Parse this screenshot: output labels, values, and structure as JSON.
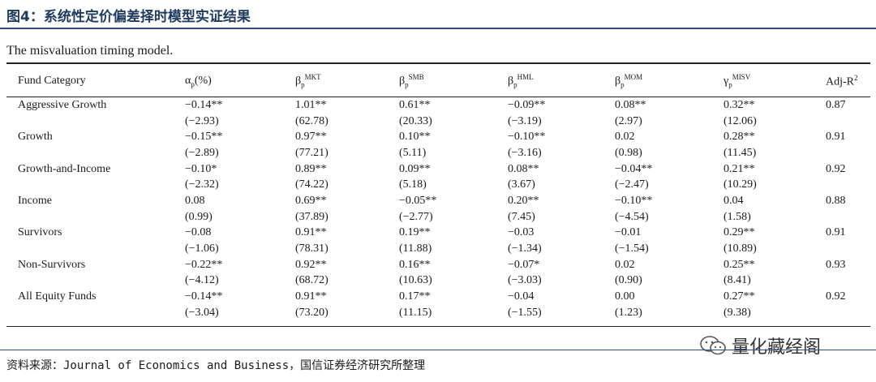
{
  "figure_title": "图4：系统性定价偏差择时模型实证结果",
  "caption": "The misvaluation timing model.",
  "headers": {
    "category": "Fund Category",
    "alpha": {
      "sym": "α",
      "sub": "p",
      "suffix": "(%)"
    },
    "b_mkt": {
      "sym": "β",
      "sub": "p",
      "sup": "MKT"
    },
    "b_smb": {
      "sym": "β",
      "sub": "p",
      "sup": "SMB"
    },
    "b_hml": {
      "sym": "β",
      "sub": "p",
      "sup": "HML"
    },
    "b_mom": {
      "sym": "β",
      "sub": "p",
      "sup": "MOM"
    },
    "g_misv": {
      "sym": "γ",
      "sub": "p",
      "sup": "MISV"
    },
    "adj": {
      "text": "Adj-R",
      "sup": "2"
    }
  },
  "rows": [
    {
      "category": "Aggressive Growth",
      "coef": [
        "−0.14**",
        "1.01**",
        "0.61**",
        "−0.09**",
        "0.08**",
        "0.32**"
      ],
      "tstat": [
        "(−2.93)",
        "(62.78)",
        "(20.33)",
        "(−3.19)",
        "(2.97)",
        "(12.06)"
      ],
      "adj_r2": "0.87"
    },
    {
      "category": "Growth",
      "coef": [
        "−0.15**",
        "0.97**",
        "0.10**",
        "−0.10**",
        "0.02",
        "0.28**"
      ],
      "tstat": [
        "(−2.89)",
        "(77.21)",
        "(5.11)",
        "(−3.16)",
        "(0.98)",
        "(11.45)"
      ],
      "adj_r2": "0.91"
    },
    {
      "category": "Growth-and-Income",
      "coef": [
        "−0.10*",
        "0.89**",
        "0.09**",
        "0.08**",
        "−0.04**",
        "0.21**"
      ],
      "tstat": [
        "(−2.32)",
        "(74.22)",
        "(5.18)",
        "(3.67)",
        "(−2.47)",
        "(10.29)"
      ],
      "adj_r2": "0.92"
    },
    {
      "category": "Income",
      "coef": [
        "0.08",
        "0.69**",
        "−0.05**",
        "0.20**",
        "−0.10**",
        "0.04"
      ],
      "tstat": [
        "(0.99)",
        "(37.89)",
        "(−2.77)",
        "(7.45)",
        "(−4.54)",
        "(1.58)"
      ],
      "adj_r2": "0.88"
    },
    {
      "category": "Survivors",
      "coef": [
        "−0.08",
        "0.91**",
        "0.19**",
        "−0.03",
        "−0.01",
        "0.29**"
      ],
      "tstat": [
        "(−1.06)",
        "(78.31)",
        "(11.88)",
        "(−1.34)",
        "(−1.54)",
        "(10.89)"
      ],
      "adj_r2": "0.91"
    },
    {
      "category": "Non-Survivors",
      "coef": [
        "−0.22**",
        "0.92**",
        "0.16**",
        "−0.07*",
        "0.02",
        "0.25**"
      ],
      "tstat": [
        "(−4.12)",
        "(68.72)",
        "(10.63)",
        "(−3.03)",
        "(0.90)",
        "(8.41)"
      ],
      "adj_r2": "0.93"
    },
    {
      "category": "All Equity Funds",
      "coef": [
        "−0.14**",
        "0.91**",
        "0.17**",
        "−0.04",
        "0.00",
        "0.27**"
      ],
      "tstat": [
        "(−3.04)",
        "(73.20)",
        "(11.15)",
        "(−1.55)",
        "(1.23)",
        "(9.38)"
      ],
      "adj_r2": "0.92"
    }
  ],
  "source": "资料来源：Journal of Economics and Business，国信证券经济研究所整理",
  "watermark": "量化藏经阁",
  "watermark_icon": "wechat-icon"
}
